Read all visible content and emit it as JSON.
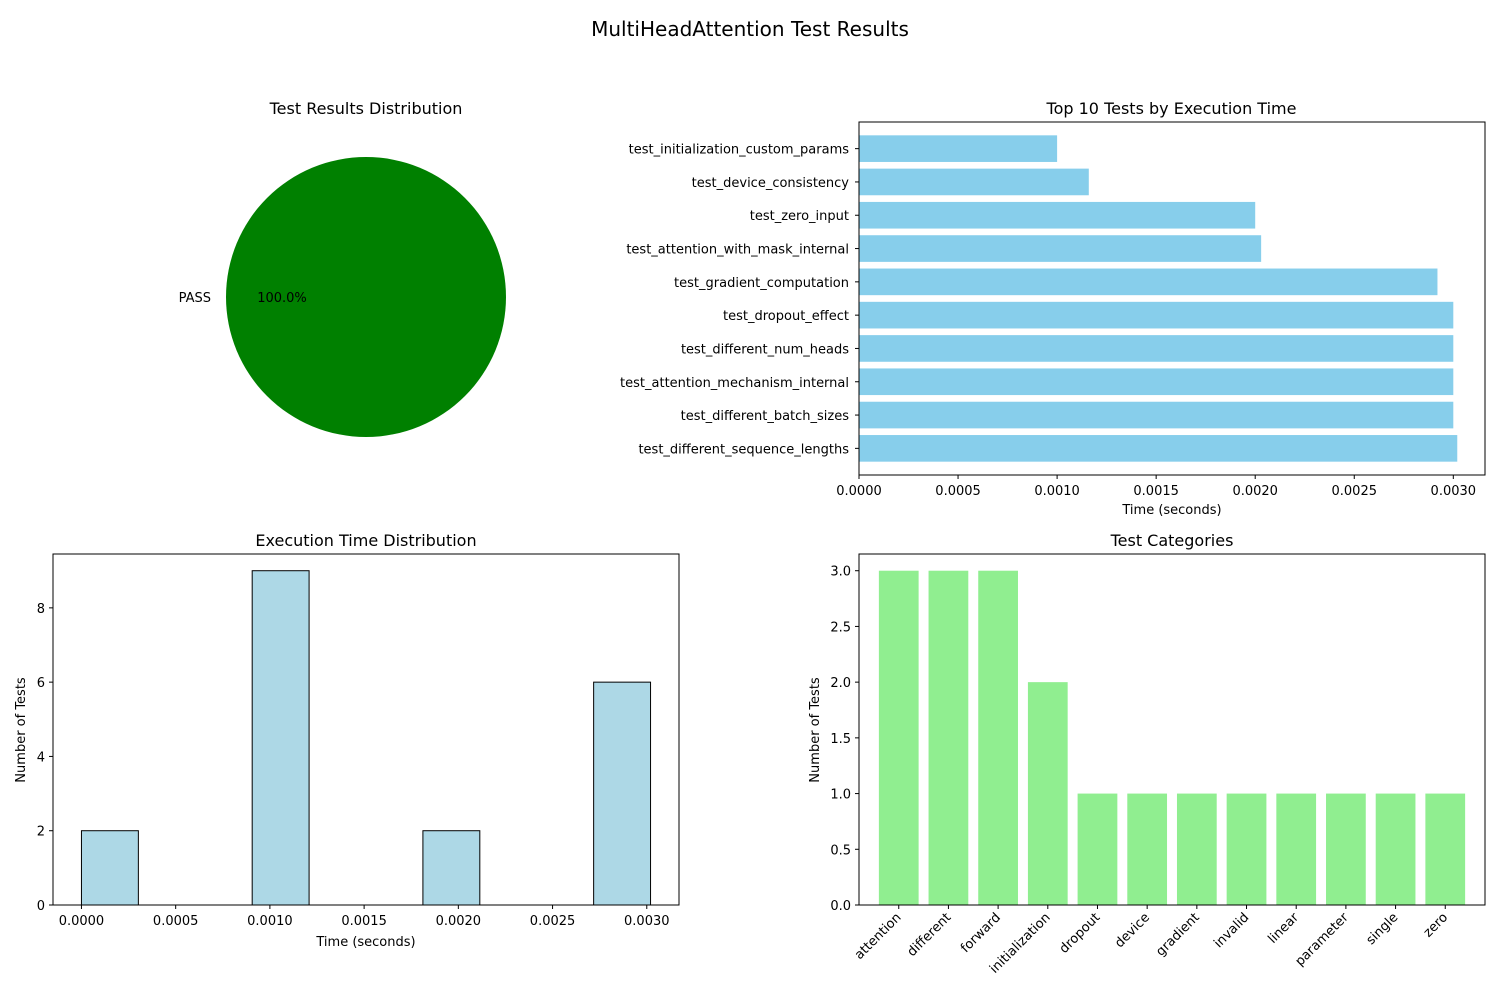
{
  "figure": {
    "suptitle": "MultiHeadAttention Test Results"
  },
  "chart_data": [
    {
      "type": "pie",
      "title": "Test Results Distribution",
      "labels": [
        "PASS"
      ],
      "values": [
        100.0
      ],
      "autopct": [
        "100.0%"
      ],
      "colors": [
        "#008000"
      ]
    },
    {
      "type": "bar",
      "orientation": "horizontal",
      "title": "Top 10 Tests by Execution Time",
      "xlabel": "Time (seconds)",
      "ylabel": "",
      "categories": [
        "test_initialization_custom_params",
        "test_device_consistency",
        "test_zero_input",
        "test_attention_with_mask_internal",
        "test_gradient_computation",
        "test_dropout_effect",
        "test_different_num_heads",
        "test_attention_mechanism_internal",
        "test_different_batch_sizes",
        "test_different_sequence_lengths"
      ],
      "values": [
        0.001,
        0.00116,
        0.002,
        0.00203,
        0.00292,
        0.003,
        0.003,
        0.003,
        0.003,
        0.00302
      ],
      "xlim": [
        0,
        0.00316
      ],
      "xticks": [
        "0.0000",
        "0.0005",
        "0.0010",
        "0.0015",
        "0.0020",
        "0.0025",
        "0.0030"
      ],
      "color": "#87ceeb"
    },
    {
      "type": "bar",
      "subtype": "histogram",
      "title": "Execution Time Distribution",
      "xlabel": "Time (seconds)",
      "ylabel": "Number of Tests",
      "bins": [
        [
          0.0,
          0.000302
        ],
        [
          0.000302,
          0.000604
        ],
        [
          0.000604,
          0.000906
        ],
        [
          0.000906,
          0.001208
        ],
        [
          0.001208,
          0.00151
        ],
        [
          0.00151,
          0.001812
        ],
        [
          0.001812,
          0.002114
        ],
        [
          0.002114,
          0.002416
        ],
        [
          0.002416,
          0.002718
        ],
        [
          0.002718,
          0.00302
        ]
      ],
      "counts": [
        2,
        0,
        0,
        9,
        0,
        0,
        2,
        0,
        0,
        6
      ],
      "xlim": [
        -0.000151,
        0.003171
      ],
      "ylim": [
        0,
        9.45
      ],
      "xticks": [
        "0.0000",
        "0.0005",
        "0.0010",
        "0.0015",
        "0.0020",
        "0.0025",
        "0.0030"
      ],
      "yticks": [
        "0",
        "2",
        "4",
        "6",
        "8"
      ],
      "color": "#add8e6",
      "edgecolor": "#000000"
    },
    {
      "type": "bar",
      "title": "Test Categories",
      "xlabel": "",
      "ylabel": "Number of Tests",
      "categories": [
        "attention",
        "different",
        "forward",
        "initialization",
        "dropout",
        "device",
        "gradient",
        "invalid",
        "linear",
        "parameter",
        "single",
        "zero"
      ],
      "values": [
        3,
        3,
        3,
        2,
        1,
        1,
        1,
        1,
        1,
        1,
        1,
        1
      ],
      "ylim": [
        0,
        3.15
      ],
      "yticks": [
        "0.0",
        "0.5",
        "1.0",
        "1.5",
        "2.0",
        "2.5",
        "3.0"
      ],
      "color": "#90ee90"
    }
  ]
}
